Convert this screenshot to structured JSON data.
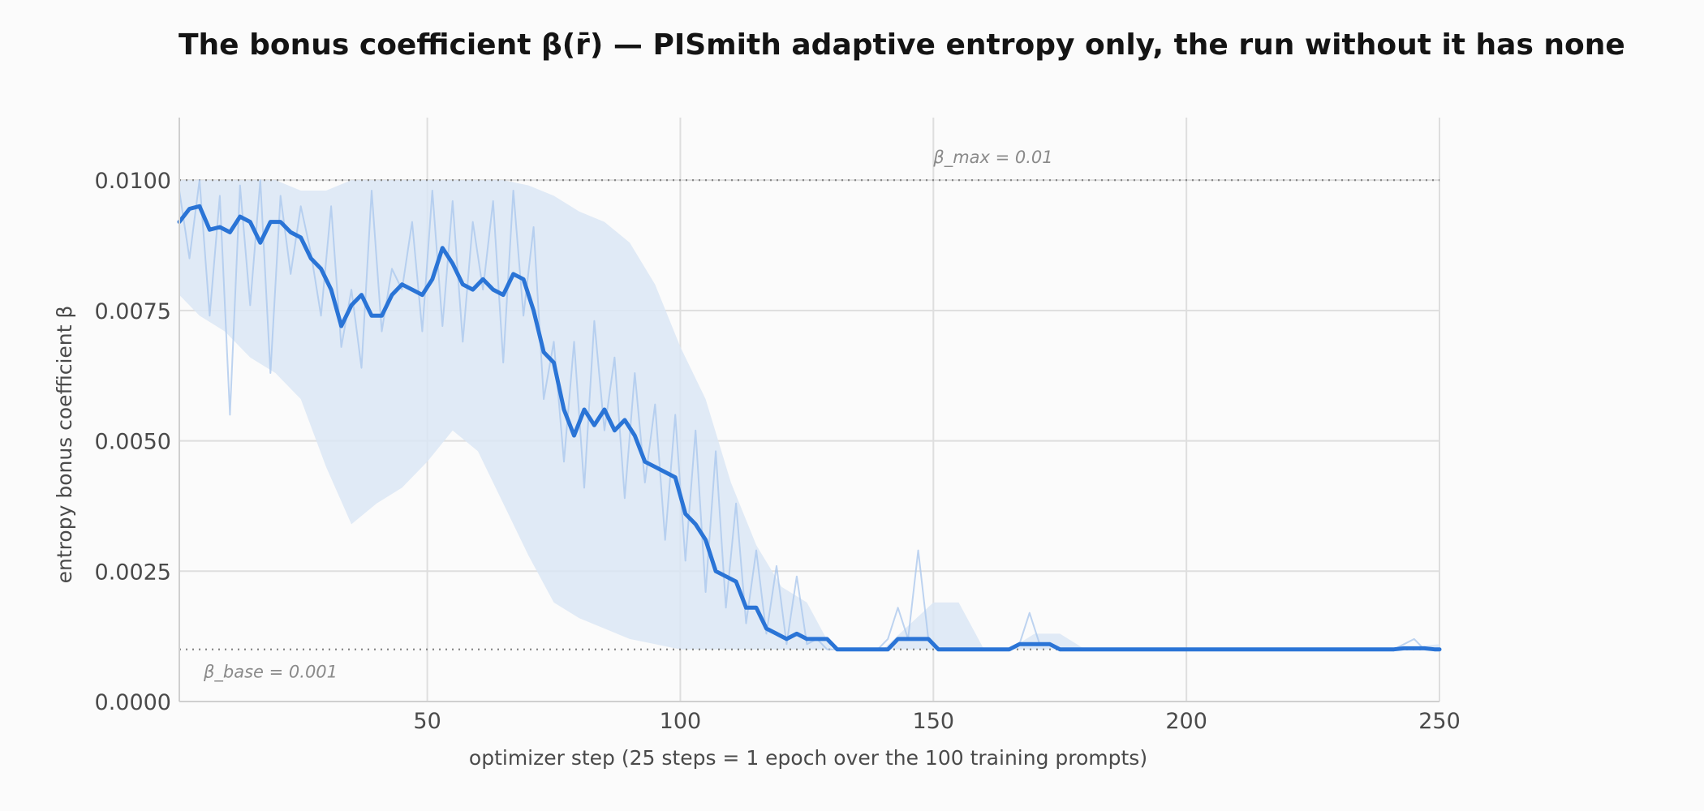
{
  "chart_data": {
    "type": "line",
    "title": "The bonus coefficient β(r̄) — PISmith adaptive entropy only, the run without it has none",
    "xlabel": "optimizer step   (25 steps = 1 epoch over the 100 training prompts)",
    "ylabel": "entropy bonus coefficient  β",
    "xlim": [
      1,
      250
    ],
    "ylim": [
      0,
      0.0112
    ],
    "x_ticks": [
      50,
      100,
      150,
      200,
      250
    ],
    "x_tick_labels": [
      "50",
      "100",
      "150",
      "200",
      "250"
    ],
    "y_ticks": [
      0,
      0.0025,
      0.005,
      0.0075,
      0.01
    ],
    "y_tick_labels": [
      "0.0000",
      "0.0025",
      "0.0050",
      "0.0075",
      "0.0100"
    ],
    "grid": true,
    "colors": {
      "smoothed": "#2a74d6",
      "raw": "#a8c6ec",
      "band": "#dbe6f5",
      "reference": "#888888",
      "grid": "#dedede"
    },
    "reference_lines": [
      {
        "label": "β_max = 0.01",
        "y": 0.01
      },
      {
        "label": "β_base = 0.001",
        "y": 0.001
      }
    ],
    "smoothed": {
      "x": [
        1,
        3,
        5,
        7,
        9,
        11,
        13,
        15,
        17,
        19,
        21,
        23,
        25,
        27,
        29,
        31,
        33,
        35,
        37,
        39,
        41,
        43,
        45,
        47,
        49,
        51,
        53,
        55,
        57,
        59,
        61,
        63,
        65,
        67,
        69,
        71,
        73,
        75,
        77,
        79,
        81,
        83,
        85,
        87,
        89,
        91,
        93,
        95,
        97,
        99,
        101,
        103,
        105,
        107,
        109,
        111,
        113,
        115,
        117,
        119,
        121,
        123,
        125,
        127,
        129,
        131,
        133,
        135,
        137,
        139,
        141,
        143,
        145,
        147,
        149,
        151,
        153,
        155,
        157,
        159,
        161,
        163,
        165,
        167,
        169,
        171,
        173,
        175,
        177,
        179,
        181,
        183,
        185,
        187,
        189,
        191,
        193,
        195,
        197,
        199,
        201,
        203,
        205,
        207,
        209,
        211,
        213,
        215,
        217,
        219,
        221,
        223,
        225,
        227,
        229,
        231,
        233,
        235,
        237,
        239,
        241,
        243,
        245,
        247,
        249,
        250
      ],
      "y": [
        0.0092,
        0.00945,
        0.0095,
        0.00905,
        0.0091,
        0.009,
        0.0093,
        0.0092,
        0.0088,
        0.0092,
        0.0092,
        0.009,
        0.0089,
        0.0085,
        0.0083,
        0.0079,
        0.0072,
        0.0076,
        0.0078,
        0.0074,
        0.0074,
        0.0078,
        0.008,
        0.0079,
        0.0078,
        0.0081,
        0.0087,
        0.0084,
        0.008,
        0.0079,
        0.0081,
        0.0079,
        0.0078,
        0.0082,
        0.0081,
        0.0075,
        0.0067,
        0.0065,
        0.0056,
        0.0051,
        0.0056,
        0.0053,
        0.0056,
        0.0052,
        0.0054,
        0.0051,
        0.0046,
        0.0045,
        0.0044,
        0.0043,
        0.0036,
        0.0034,
        0.0031,
        0.0025,
        0.0024,
        0.0023,
        0.0018,
        0.0018,
        0.0014,
        0.0013,
        0.0012,
        0.0013,
        0.0012,
        0.0012,
        0.0012,
        0.001,
        0.001,
        0.001,
        0.001,
        0.001,
        0.001,
        0.0012,
        0.0012,
        0.0012,
        0.0012,
        0.001,
        0.001,
        0.001,
        0.001,
        0.001,
        0.001,
        0.001,
        0.001,
        0.0011,
        0.0011,
        0.0011,
        0.0011,
        0.001,
        0.001,
        0.001,
        0.001,
        0.001,
        0.001,
        0.001,
        0.001,
        0.001,
        0.001,
        0.001,
        0.001,
        0.001,
        0.001,
        0.001,
        0.001,
        0.001,
        0.001,
        0.001,
        0.001,
        0.001,
        0.001,
        0.001,
        0.001,
        0.001,
        0.001,
        0.001,
        0.001,
        0.001,
        0.001,
        0.001,
        0.001,
        0.001,
        0.001,
        0.00102,
        0.00102,
        0.00102,
        0.001,
        0.001
      ]
    },
    "raw": {
      "x": [
        1,
        3,
        5,
        7,
        9,
        11,
        13,
        15,
        17,
        19,
        21,
        23,
        25,
        27,
        29,
        31,
        33,
        35,
        37,
        39,
        41,
        43,
        45,
        47,
        49,
        51,
        53,
        55,
        57,
        59,
        61,
        63,
        65,
        67,
        69,
        71,
        73,
        75,
        77,
        79,
        81,
        83,
        85,
        87,
        89,
        91,
        93,
        95,
        97,
        99,
        101,
        103,
        105,
        107,
        109,
        111,
        113,
        115,
        117,
        119,
        121,
        123,
        125,
        127,
        129,
        131,
        133,
        135,
        137,
        139,
        141,
        143,
        145,
        147,
        149,
        151,
        153,
        155,
        157,
        159,
        161,
        163,
        165,
        167,
        169,
        171,
        173,
        175,
        177,
        179,
        181,
        183,
        185,
        187,
        189,
        191,
        193,
        195,
        197,
        199,
        201,
        203,
        205,
        207,
        209,
        211,
        213,
        215,
        217,
        219,
        221,
        223,
        225,
        227,
        229,
        231,
        233,
        235,
        237,
        239,
        241,
        243,
        245,
        247,
        249,
        250
      ],
      "y": [
        0.0098,
        0.0085,
        0.01,
        0.0074,
        0.0097,
        0.0055,
        0.0099,
        0.0076,
        0.01,
        0.0063,
        0.0097,
        0.0082,
        0.0095,
        0.0086,
        0.0074,
        0.0095,
        0.0068,
        0.0079,
        0.0064,
        0.0098,
        0.0071,
        0.0083,
        0.0079,
        0.0092,
        0.0071,
        0.0098,
        0.0072,
        0.0096,
        0.0069,
        0.0092,
        0.0079,
        0.0096,
        0.0065,
        0.0098,
        0.0074,
        0.0091,
        0.0058,
        0.0069,
        0.0046,
        0.0069,
        0.0041,
        0.0073,
        0.0052,
        0.0066,
        0.0039,
        0.0063,
        0.0042,
        0.0057,
        0.0031,
        0.0055,
        0.0027,
        0.0052,
        0.0021,
        0.0048,
        0.0018,
        0.0038,
        0.0015,
        0.0029,
        0.0013,
        0.0026,
        0.0011,
        0.0024,
        0.0011,
        0.0012,
        0.001,
        0.001,
        0.001,
        0.001,
        0.001,
        0.001,
        0.0012,
        0.0018,
        0.0012,
        0.0029,
        0.0012,
        0.001,
        0.001,
        0.001,
        0.001,
        0.001,
        0.001,
        0.001,
        0.001,
        0.0011,
        0.0017,
        0.0011,
        0.0011,
        0.001,
        0.001,
        0.001,
        0.001,
        0.001,
        0.001,
        0.001,
        0.001,
        0.001,
        0.001,
        0.001,
        0.001,
        0.001,
        0.001,
        0.001,
        0.001,
        0.001,
        0.001,
        0.001,
        0.001,
        0.001,
        0.001,
        0.001,
        0.001,
        0.001,
        0.001,
        0.001,
        0.001,
        0.001,
        0.001,
        0.001,
        0.001,
        0.001,
        0.001,
        0.0011,
        0.0012,
        0.001,
        0.001,
        0.001
      ]
    },
    "band": {
      "x": [
        1,
        5,
        10,
        15,
        20,
        25,
        30,
        35,
        40,
        45,
        50,
        55,
        60,
        65,
        70,
        75,
        80,
        85,
        90,
        95,
        100,
        105,
        110,
        115,
        120,
        125,
        130,
        140,
        150,
        155,
        160,
        165,
        170,
        175,
        180,
        190,
        200,
        210,
        220,
        230,
        240,
        250
      ],
      "lower": [
        0.0078,
        0.0074,
        0.0071,
        0.0066,
        0.0063,
        0.0058,
        0.0045,
        0.0034,
        0.0038,
        0.0041,
        0.0046,
        0.0052,
        0.0048,
        0.0038,
        0.0028,
        0.0019,
        0.0016,
        0.0014,
        0.0012,
        0.0011,
        0.001,
        0.001,
        0.001,
        0.001,
        0.001,
        0.001,
        0.001,
        0.001,
        0.001,
        0.001,
        0.001,
        0.001,
        0.001,
        0.001,
        0.001,
        0.001,
        0.001,
        0.001,
        0.001,
        0.001,
        0.001,
        0.001
      ],
      "upper": [
        0.01,
        0.01,
        0.01,
        0.01,
        0.01,
        0.0098,
        0.0098,
        0.01,
        0.01,
        0.01,
        0.01,
        0.01,
        0.01,
        0.01,
        0.0099,
        0.0097,
        0.0094,
        0.0092,
        0.0088,
        0.008,
        0.0068,
        0.0058,
        0.0042,
        0.003,
        0.0022,
        0.0019,
        0.001,
        0.001,
        0.0019,
        0.0019,
        0.001,
        0.001,
        0.0013,
        0.0013,
        0.001,
        0.001,
        0.001,
        0.001,
        0.001,
        0.001,
        0.001,
        0.0011
      ]
    }
  }
}
